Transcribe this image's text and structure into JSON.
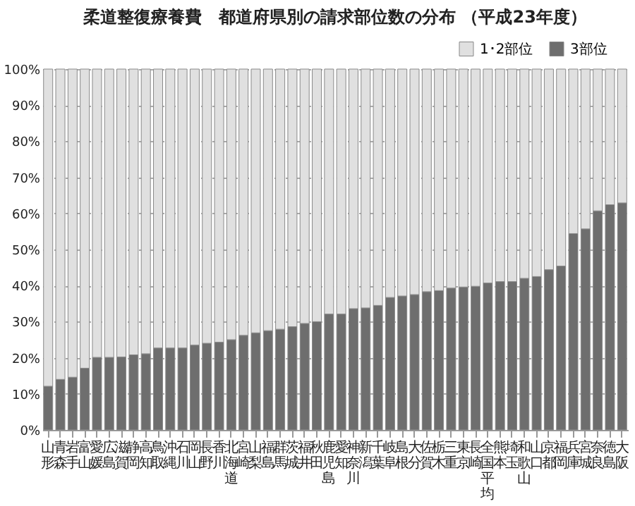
{
  "chart_data": {
    "type": "bar",
    "title": "柔道整復療養費　都道府県別の請求部位数の分布 （平成23年度）",
    "categories": [
      "山形",
      "青森",
      "岩手",
      "富山",
      "愛媛",
      "広島",
      "滋賀",
      "静岡",
      "高知",
      "鳥取",
      "沖縄",
      "石川",
      "岡山",
      "長野",
      "香川",
      "北海道",
      "宮崎",
      "山梨",
      "福島",
      "群馬",
      "茨城",
      "福井",
      "秋田",
      "鹿児島",
      "愛知",
      "神奈川",
      "新潟",
      "千葉",
      "岐阜",
      "島根",
      "大分",
      "佐賀",
      "栃木",
      "三重",
      "東京",
      "長崎",
      "全国平均",
      "熊本",
      "埼玉",
      "和歌山",
      "山口",
      "京都",
      "福岡",
      "兵庫",
      "宮城",
      "奈良",
      "徳島",
      "大阪"
    ],
    "stacked": true,
    "series": [
      {
        "name": "3部位",
        "color": "#6e6e6e",
        "values": [
          12.1,
          14.0,
          14.6,
          17.1,
          20.1,
          20.1,
          20.2,
          20.8,
          21.1,
          22.7,
          22.7,
          22.7,
          23.5,
          24.0,
          24.3,
          25.0,
          26.2,
          26.9,
          27.5,
          27.9,
          28.6,
          29.5,
          30.0,
          32.1,
          32.1,
          33.6,
          33.8,
          34.5,
          36.7,
          37.1,
          37.5,
          38.3,
          38.6,
          39.3,
          39.6,
          39.8,
          40.7,
          41.1,
          41.1,
          42.0,
          42.5,
          44.4,
          45.4,
          54.4,
          55.7,
          60.7,
          62.4,
          62.9
        ]
      },
      {
        "name": "1･2部位",
        "color": "#e0e0e0",
        "values": [
          87.9,
          86.0,
          85.4,
          82.9,
          79.9,
          79.9,
          79.8,
          79.2,
          78.9,
          77.3,
          77.3,
          77.3,
          76.5,
          76.0,
          75.7,
          75.0,
          73.8,
          73.1,
          72.5,
          72.1,
          71.4,
          70.5,
          70.0,
          67.9,
          67.9,
          66.4,
          66.2,
          65.5,
          63.3,
          62.9,
          62.5,
          61.7,
          61.4,
          60.7,
          60.4,
          60.2,
          59.3,
          58.9,
          58.9,
          58.0,
          57.5,
          55.6,
          54.6,
          45.6,
          44.3,
          39.3,
          37.6,
          37.1
        ]
      }
    ],
    "ylim": [
      0,
      100
    ],
    "yticks": [
      {
        "value": 0,
        "label": "0%"
      },
      {
        "value": 10,
        "label": "10%"
      },
      {
        "value": 20,
        "label": "20%"
      },
      {
        "value": 30,
        "label": "30%"
      },
      {
        "value": 40,
        "label": "40%"
      },
      {
        "value": 50,
        "label": "50%"
      },
      {
        "value": 60,
        "label": "60%"
      },
      {
        "value": 70,
        "label": "70%"
      },
      {
        "value": 80,
        "label": "80%"
      },
      {
        "value": 90,
        "label": "90%"
      },
      {
        "value": 100,
        "label": "100%"
      }
    ],
    "grid": "y",
    "legend": "top right"
  }
}
